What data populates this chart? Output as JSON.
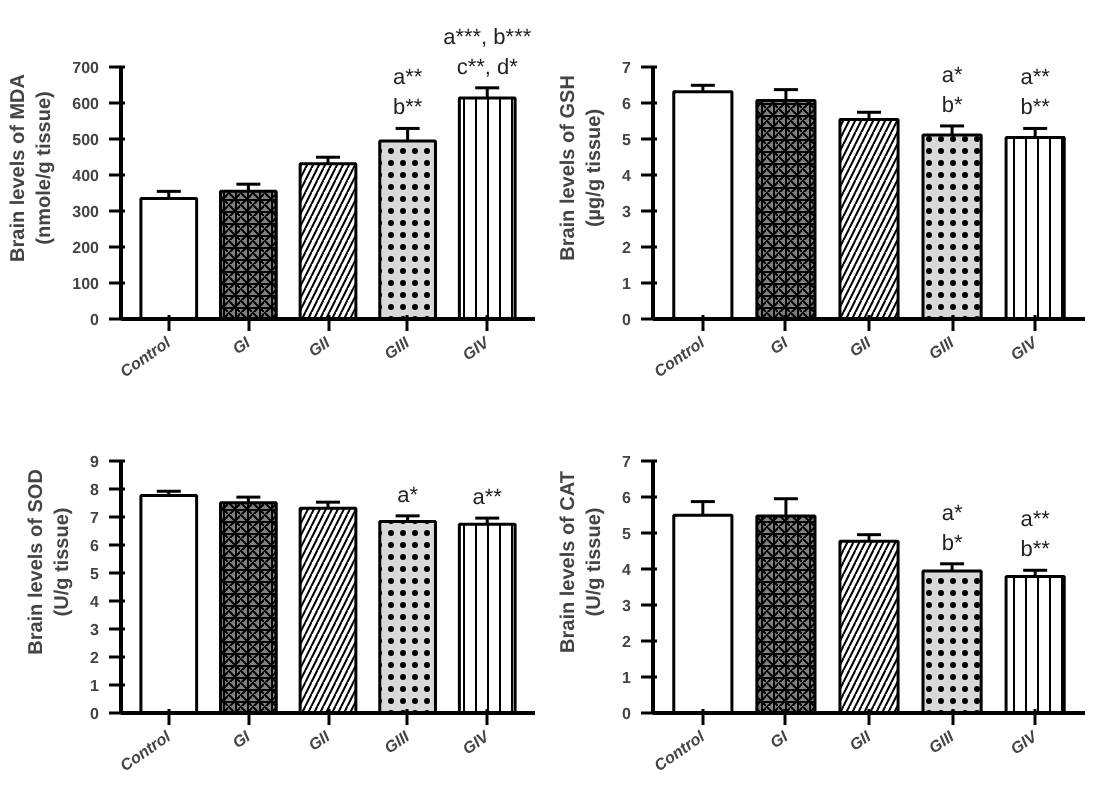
{
  "chart_data": [
    {
      "type": "bar",
      "ylabel": "Brain levels of MDA\n(nmole/g tissue)",
      "categories": [
        "Control",
        "GI",
        "GII",
        "GIII",
        "GIV"
      ],
      "values": [
        335,
        355,
        432,
        495,
        615
      ],
      "errors": [
        20,
        20,
        18,
        35,
        28
      ],
      "colors": [
        "#ffffff",
        "#808080",
        "#ffffff",
        "#d9d9d9",
        "#ffffff"
      ],
      "ylim": [
        0,
        700
      ],
      "yticks": [
        0,
        100,
        200,
        300,
        400,
        500,
        600,
        700
      ],
      "grid": false,
      "annotations": [
        {
          "text": "a**",
          "x": "GIII",
          "y": 495
        },
        {
          "text": "b**",
          "x": "GIII",
          "y": 495
        },
        {
          "text": "a***, b***",
          "x": "GIV",
          "y": 615
        },
        {
          "text": "c**, d*",
          "x": "GIV",
          "y": 615
        }
      ]
    },
    {
      "type": "bar",
      "ylabel": "Brain levels of GSH\n(µg/g tissue)",
      "categories": [
        "Control",
        "GI",
        "GII",
        "GIII",
        "GIV"
      ],
      "values": [
        6.32,
        6.08,
        5.55,
        5.12,
        5.05
      ],
      "errors": [
        0.18,
        0.3,
        0.2,
        0.25,
        0.25
      ],
      "colors": [
        "#ffffff",
        "#808080",
        "#ffffff",
        "#d9d9d9",
        "#ffffff"
      ],
      "ylim": [
        0,
        7
      ],
      "yticks": [
        0,
        1,
        2,
        3,
        4,
        5,
        6,
        7
      ],
      "grid": false,
      "annotations": [
        {
          "text": "a*",
          "x": "GIII",
          "y": 5.12
        },
        {
          "text": "b*",
          "x": "GIII",
          "y": 5.12
        },
        {
          "text": "a**",
          "x": "GIV",
          "y": 5.05
        },
        {
          "text": "b**",
          "x": "GIV",
          "y": 5.05
        }
      ]
    },
    {
      "type": "bar",
      "ylabel": "Brain levels of SOD\n(U/g tissue)",
      "categories": [
        "Control",
        "GI",
        "GII",
        "GIII",
        "GIV"
      ],
      "values": [
        7.78,
        7.52,
        7.32,
        6.85,
        6.75
      ],
      "errors": [
        0.15,
        0.2,
        0.22,
        0.2,
        0.22
      ],
      "colors": [
        "#ffffff",
        "#808080",
        "#ffffff",
        "#d9d9d9",
        "#ffffff"
      ],
      "ylim": [
        0,
        9
      ],
      "yticks": [
        0,
        1,
        2,
        3,
        4,
        5,
        6,
        7,
        8,
        9
      ],
      "grid": false,
      "annotations": [
        {
          "text": "a*",
          "x": "GIII",
          "y": 6.85
        },
        {
          "text": "a**",
          "x": "GIV",
          "y": 6.75
        }
      ]
    },
    {
      "type": "bar",
      "ylabel": "Brain levels of CAT\n(U/g tissue)",
      "categories": [
        "Control",
        "GI",
        "GII",
        "GIII",
        "GIV"
      ],
      "values": [
        5.5,
        5.48,
        4.78,
        3.95,
        3.8
      ],
      "errors": [
        0.38,
        0.48,
        0.18,
        0.2,
        0.17
      ],
      "colors": [
        "#ffffff",
        "#808080",
        "#ffffff",
        "#d9d9d9",
        "#ffffff"
      ],
      "ylim": [
        0,
        7
      ],
      "yticks": [
        0,
        1,
        2,
        3,
        4,
        5,
        6,
        7
      ],
      "grid": false,
      "annotations": [
        {
          "text": "a*",
          "x": "GIII",
          "y": 3.95
        },
        {
          "text": "b*",
          "x": "GIII",
          "y": 3.95
        },
        {
          "text": "a**",
          "x": "GIV",
          "y": 3.8
        },
        {
          "text": "b**",
          "x": "GIV",
          "y": 3.8
        }
      ]
    }
  ]
}
